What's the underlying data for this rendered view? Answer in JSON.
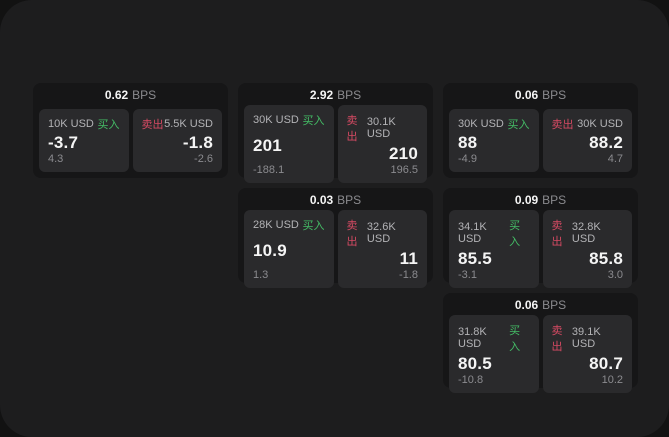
{
  "colors": {
    "page_bg": "#121212",
    "surface_bg": "#1d1d1e",
    "card_bg": "#161617",
    "panel_bg": "#2a2a2c",
    "text_primary": "#f5f5f5",
    "text_secondary": "#8b8b8f",
    "text_label": "#b3b3b6",
    "buy_green": "#44bd66",
    "sell_red": "#d64a63"
  },
  "labels": {
    "bps_unit": "BPS",
    "buy": "买入",
    "sell": "卖出"
  },
  "cards": [
    {
      "bps": "0.62",
      "buy": {
        "size": "10K USD",
        "value": "-3.7",
        "delta": "4.3"
      },
      "sell": {
        "size": "5.5K USD",
        "value": "-1.8",
        "delta": "-2.6"
      }
    },
    {
      "bps": "2.92",
      "buy": {
        "size": "30K USD",
        "value": "201",
        "delta": "-188.1"
      },
      "sell": {
        "size": "30.1K USD",
        "value": "210",
        "delta": "196.5"
      }
    },
    {
      "bps": "0.06",
      "buy": {
        "size": "30K USD",
        "value": "88",
        "delta": "-4.9"
      },
      "sell": {
        "size": "30K USD",
        "value": "88.2",
        "delta": "4.7"
      }
    },
    {
      "bps": "0.03",
      "buy": {
        "size": "28K USD",
        "value": "10.9",
        "delta": "1.3"
      },
      "sell": {
        "size": "32.6K USD",
        "value": "11",
        "delta": "-1.8"
      }
    },
    {
      "bps": "0.09",
      "buy": {
        "size": "34.1K USD",
        "value": "85.5",
        "delta": "-3.1"
      },
      "sell": {
        "size": "32.8K USD",
        "value": "85.8",
        "delta": "3.0"
      }
    },
    {
      "bps": "0.06",
      "buy": {
        "size": "31.8K USD",
        "value": "80.5",
        "delta": "-10.8"
      },
      "sell": {
        "size": "39.1K USD",
        "value": "80.7",
        "delta": "10.2"
      }
    }
  ]
}
